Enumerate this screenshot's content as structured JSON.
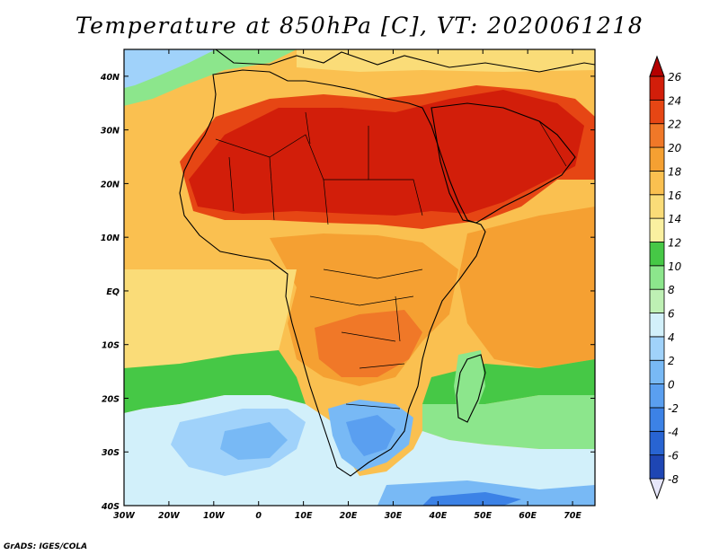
{
  "title": "Temperature at 850hPa [C], VT: 2020061218",
  "credit": "GrADS: IGES/COLA",
  "map": {
    "lon_range": [
      -30,
      75
    ],
    "lat_range": [
      -40,
      45
    ],
    "x_tick_labels": [
      "30W",
      "20W",
      "10W",
      "0",
      "10E",
      "20E",
      "30E",
      "40E",
      "50E",
      "60E",
      "70E"
    ],
    "y_tick_labels": [
      "40S",
      "30S",
      "20S",
      "10S",
      "EQ",
      "10N",
      "20N",
      "30N",
      "40N"
    ],
    "x_tick_values": [
      -30,
      -20,
      -10,
      0,
      10,
      20,
      30,
      40,
      50,
      60,
      70
    ],
    "y_tick_values": [
      -40,
      -30,
      -20,
      -10,
      0,
      10,
      20,
      30,
      40
    ]
  },
  "colorbar": {
    "levels": [
      -8,
      -6,
      -4,
      -2,
      0,
      2,
      4,
      6,
      8,
      10,
      12,
      14,
      16,
      18,
      20,
      22,
      24,
      26
    ],
    "labels": [
      "-8",
      "-6",
      "-4",
      "-2",
      "0",
      "2",
      "4",
      "6",
      "8",
      "10",
      "12",
      "14",
      "16",
      "18",
      "20",
      "22",
      "24",
      "26"
    ],
    "colors": [
      "#1e1e8c",
      "#1e46b4",
      "#2864d2",
      "#3c82e6",
      "#5a9ff0",
      "#78b9f5",
      "#a0d2fa",
      "#d2f0fa",
      "#bef0b4",
      "#8ce68c",
      "#46c846",
      "#faf0a0",
      "#fadc78",
      "#fac050",
      "#f5a032",
      "#f07828",
      "#e64614",
      "#d21e0a",
      "#b40000"
    ]
  }
}
